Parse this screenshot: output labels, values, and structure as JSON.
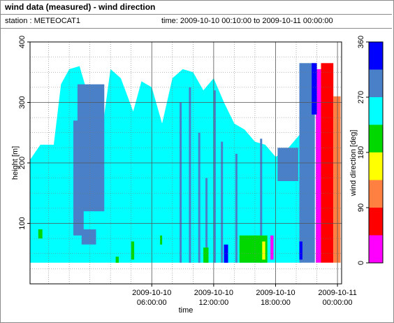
{
  "header": {
    "title": "wind data (measured) - wind direction",
    "station": "station : METEOCAT1",
    "time_range": "time: 2009-10-10 00:10:00 to 2009-10-11 00:00:00"
  },
  "chart_data": {
    "type": "heatmap",
    "title": "wind data (measured) - wind direction",
    "xlabel": "time",
    "ylabel": "height [m]",
    "colorbar_label": "wind direction [deg]",
    "xlim_hours": [
      -5.8,
      24.4
    ],
    "ylim": [
      0,
      400
    ],
    "x_ticks": [
      {
        "hour": 6,
        "label1": "2009-10-10",
        "label2": "06:00:00"
      },
      {
        "hour": 12,
        "label1": "2009-10-10",
        "label2": "12:00:00"
      },
      {
        "hour": 18,
        "label1": "2009-10-10",
        "label2": "18:00:00"
      },
      {
        "hour": 24,
        "label1": "2009-10-11",
        "label2": "00:00:00"
      }
    ],
    "y_ticks": [
      100,
      200,
      300,
      400
    ],
    "grid": true,
    "colorbar": {
      "range": [
        0,
        360
      ],
      "ticks": [
        0,
        90,
        180,
        270,
        360
      ],
      "bins": [
        {
          "from": 0,
          "to": 45,
          "color": "#ff00ff"
        },
        {
          "from": 45,
          "to": 90,
          "color": "#ff0000"
        },
        {
          "from": 90,
          "to": 135,
          "color": "#ff8040"
        },
        {
          "from": 135,
          "to": 180,
          "color": "#ffff00"
        },
        {
          "from": 180,
          "to": 225,
          "color": "#00d800"
        },
        {
          "from": 225,
          "to": 270,
          "color": "#00ffff"
        },
        {
          "from": 270,
          "to": 315,
          "color": "#4a80c8"
        },
        {
          "from": 315,
          "to": 360,
          "color": "#0000ff"
        }
      ]
    },
    "background_field": {
      "direction": 250,
      "from_height": 35
    },
    "cyan_top_profile": [
      {
        "hour": -5.8,
        "height": 205
      },
      {
        "hour": -4.8,
        "height": 230
      },
      {
        "hour": -3.5,
        "height": 230
      },
      {
        "hour": -2.8,
        "height": 330
      },
      {
        "hour": -2.0,
        "height": 355
      },
      {
        "hour": -1.0,
        "height": 360
      },
      {
        "hour": 0.2,
        "height": 290
      },
      {
        "hour": 1.2,
        "height": 255
      },
      {
        "hour": 2.0,
        "height": 355
      },
      {
        "hour": 3.0,
        "height": 340
      },
      {
        "hour": 4.2,
        "height": 285
      },
      {
        "hour": 5.0,
        "height": 335
      },
      {
        "hour": 6.0,
        "height": 325
      },
      {
        "hour": 7.0,
        "height": 265
      },
      {
        "hour": 8.0,
        "height": 340
      },
      {
        "hour": 9.0,
        "height": 355
      },
      {
        "hour": 10.0,
        "height": 350
      },
      {
        "hour": 11.0,
        "height": 320
      },
      {
        "hour": 12.0,
        "height": 340
      },
      {
        "hour": 13.0,
        "height": 300
      },
      {
        "hour": 14.0,
        "height": 265
      },
      {
        "hour": 15.0,
        "height": 255
      },
      {
        "hour": 16.0,
        "height": 235
      },
      {
        "hour": 17.0,
        "height": 230
      },
      {
        "hour": 18.0,
        "height": 210
      },
      {
        "hour": 19.0,
        "height": 220
      },
      {
        "hour": 20.0,
        "height": 240
      },
      {
        "hour": 20.5,
        "height": 250
      }
    ],
    "segments": [
      {
        "hour": -1.2,
        "to_hour": 1.4,
        "from": 120,
        "to": 330,
        "direction": 285
      },
      {
        "hour": -1.6,
        "to_hour": -0.6,
        "from": 80,
        "to": 270,
        "direction": 285
      },
      {
        "hour": -0.8,
        "to_hour": 0.6,
        "from": 65,
        "to": 90,
        "direction": 285
      },
      {
        "hour": 8.7,
        "to_hour": 8.9,
        "from": 35,
        "to": 300,
        "direction": 285
      },
      {
        "hour": 9.6,
        "to_hour": 9.8,
        "from": 35,
        "to": 325,
        "direction": 285
      },
      {
        "hour": 10.5,
        "to_hour": 10.7,
        "from": 35,
        "to": 250,
        "direction": 285
      },
      {
        "hour": 11.2,
        "to_hour": 11.4,
        "from": 35,
        "to": 175,
        "direction": 285
      },
      {
        "hour": 12.0,
        "to_hour": 12.2,
        "from": 35,
        "to": 320,
        "direction": 285
      },
      {
        "hour": 12.7,
        "to_hour": 12.9,
        "from": 35,
        "to": 235,
        "direction": 285
      },
      {
        "hour": 14.1,
        "to_hour": 14.3,
        "from": 35,
        "to": 215,
        "direction": 285
      },
      {
        "hour": 16.5,
        "to_hour": 16.7,
        "from": 35,
        "to": 240,
        "direction": 285
      },
      {
        "hour": 18.2,
        "to_hour": 20.2,
        "from": 170,
        "to": 225,
        "direction": 285
      },
      {
        "hour": 20.3,
        "to_hour": 21.8,
        "from": 35,
        "to": 365,
        "direction": 285
      },
      {
        "hour": 21.9,
        "to_hour": 22.4,
        "from": 35,
        "to": 355,
        "direction": 0
      },
      {
        "hour": 22.4,
        "to_hour": 23.6,
        "from": 35,
        "to": 365,
        "direction": 70
      },
      {
        "hour": 23.6,
        "to_hour": 24.3,
        "from": 35,
        "to": 310,
        "direction": 110
      },
      {
        "hour": 21.5,
        "to_hour": 22.0,
        "from": 280,
        "to": 365,
        "direction": 340
      },
      {
        "hour": 2.5,
        "to_hour": 2.8,
        "from": 35,
        "to": 45,
        "direction": 210
      },
      {
        "hour": 11.0,
        "to_hour": 11.5,
        "from": 35,
        "to": 60,
        "direction": 205
      },
      {
        "hour": 13.0,
        "to_hour": 13.4,
        "from": 35,
        "to": 65,
        "direction": 340
      },
      {
        "hour": 14.5,
        "to_hour": 17.2,
        "from": 35,
        "to": 80,
        "direction": 200
      },
      {
        "hour": 16.7,
        "to_hour": 17.0,
        "from": 40,
        "to": 70,
        "direction": 160
      },
      {
        "hour": 17.5,
        "to_hour": 17.8,
        "from": 40,
        "to": 80,
        "direction": 0
      },
      {
        "hour": 20.3,
        "to_hour": 20.6,
        "from": 40,
        "to": 70,
        "direction": 340
      },
      {
        "hour": 4.0,
        "to_hour": 4.3,
        "from": 40,
        "to": 70,
        "direction": 210
      },
      {
        "hour": -5.0,
        "to_hour": -4.6,
        "from": 75,
        "to": 90,
        "direction": 200
      },
      {
        "hour": 6.8,
        "to_hour": 7.0,
        "from": 65,
        "to": 80,
        "direction": 200
      }
    ]
  }
}
